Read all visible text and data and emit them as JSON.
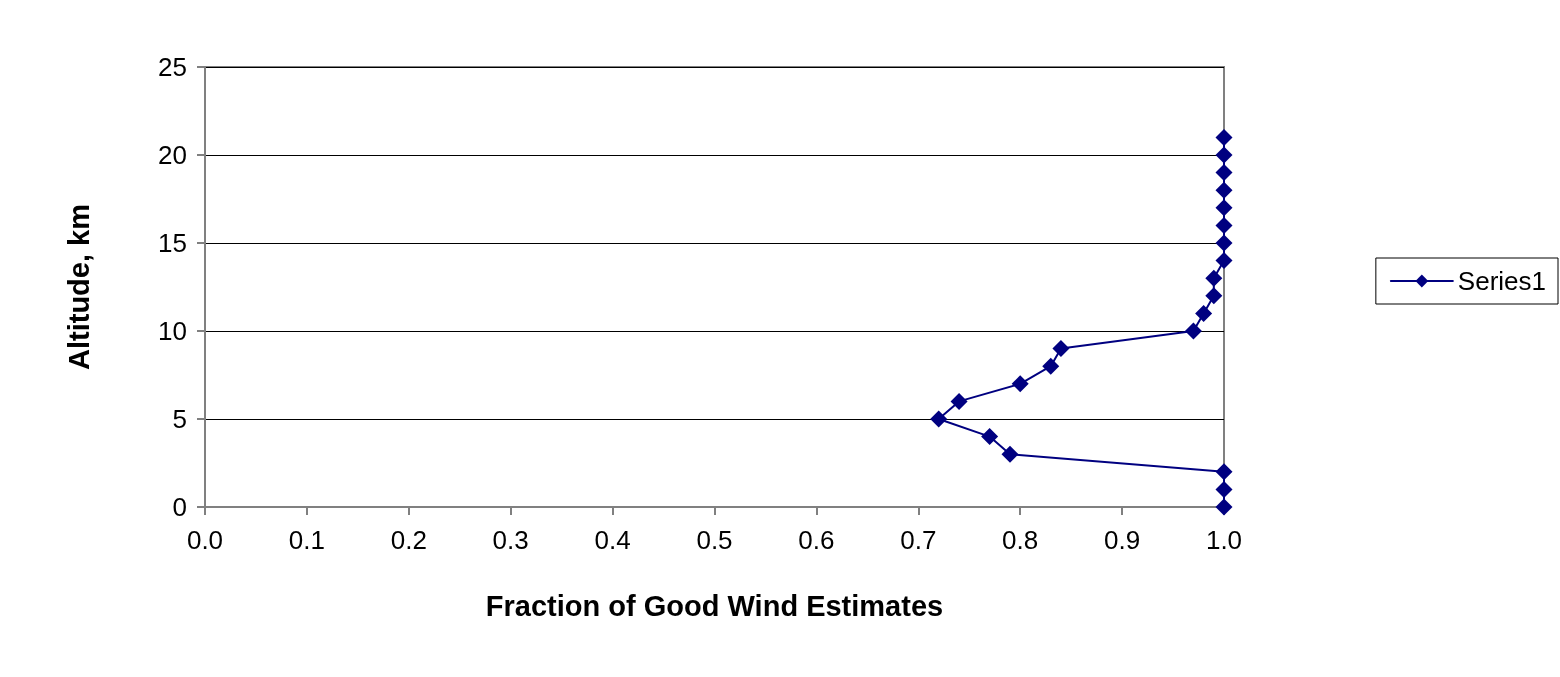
{
  "chart_data": {
    "type": "line",
    "xlabel": "Fraction of Good Wind Estimates",
    "ylabel": "Altitude, km",
    "xlim": [
      0,
      1
    ],
    "xticks": [
      {
        "value": 0,
        "label": "0.0"
      },
      {
        "value": 0.1,
        "label": "0.1"
      },
      {
        "value": 0.2,
        "label": "0.2"
      },
      {
        "value": 0.3,
        "label": "0.3"
      },
      {
        "value": 0.4,
        "label": "0.4"
      },
      {
        "value": 0.5,
        "label": "0.5"
      },
      {
        "value": 0.6,
        "label": "0.6"
      },
      {
        "value": 0.7,
        "label": "0.7"
      },
      {
        "value": 0.8,
        "label": "0.8"
      },
      {
        "value": 0.9,
        "label": "0.9"
      },
      {
        "value": 1,
        "label": "1.0"
      }
    ],
    "ylim": [
      0,
      25
    ],
    "yticks": [
      0,
      5,
      10,
      15,
      20,
      25
    ],
    "grid": "y",
    "legend": "right",
    "marker": "diamond",
    "line_style": "solid",
    "series": [
      {
        "name": "Series1",
        "color": "#000080",
        "x": [
          1.0,
          1.0,
          1.0,
          0.79,
          0.77,
          0.72,
          0.74,
          0.8,
          0.83,
          0.84,
          0.97,
          0.98,
          0.99,
          0.99,
          1.0,
          1.0,
          1.0,
          1.0,
          1.0,
          1.0,
          1.0,
          1.0
        ],
        "values": [
          0,
          1,
          2,
          3,
          4,
          5,
          6,
          7,
          8,
          9,
          10,
          11,
          12,
          13,
          14,
          15,
          16,
          17,
          18,
          19,
          20,
          21
        ]
      }
    ]
  }
}
